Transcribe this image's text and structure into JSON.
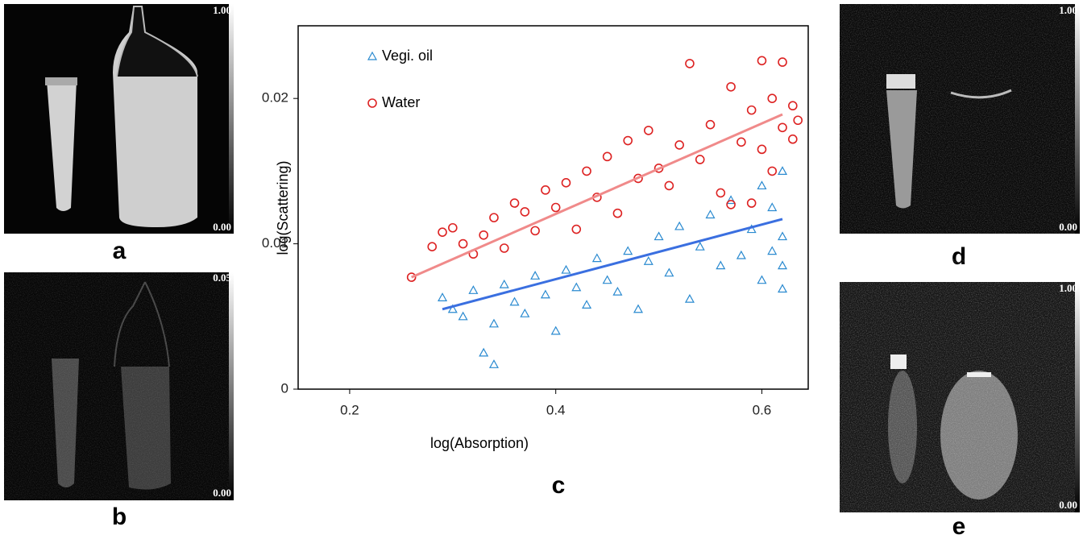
{
  "panels": [
    {
      "label": "a",
      "colorbar": [
        "1.00",
        "0.00"
      ]
    },
    {
      "label": "b",
      "colorbar": [
        "0.05",
        "0.00"
      ]
    },
    {
      "label": "d",
      "colorbar": [
        "1.00",
        "0.00"
      ]
    },
    {
      "label": "e",
      "colorbar": [
        "1.00",
        "0.00"
      ]
    }
  ],
  "chart_data": {
    "type": "scatter",
    "label": "c",
    "x_label": "log(Absorption)",
    "y_label": "log(Scattering)",
    "xlim": [
      0.15,
      0.645
    ],
    "ylim": [
      0,
      0.025
    ],
    "xticks": [
      0.2,
      0.4,
      0.6
    ],
    "yticks": [
      0,
      0.01,
      0.02
    ],
    "series": [
      {
        "name": "Vegi. oil",
        "color": "#2a8ad0",
        "marker": "triangle",
        "x": [
          0.29,
          0.3,
          0.31,
          0.32,
          0.33,
          0.34,
          0.34,
          0.35,
          0.36,
          0.37,
          0.38,
          0.39,
          0.4,
          0.41,
          0.42,
          0.43,
          0.44,
          0.45,
          0.46,
          0.47,
          0.48,
          0.49,
          0.5,
          0.51,
          0.52,
          0.53,
          0.54,
          0.55,
          0.56,
          0.57,
          0.58,
          0.59,
          0.6,
          0.6,
          0.61,
          0.61,
          0.62,
          0.62,
          0.62,
          0.62
        ],
        "values": [
          0.0063,
          0.0055,
          0.005,
          0.0068,
          0.0025,
          0.0017,
          0.0045,
          0.0072,
          0.006,
          0.0052,
          0.0078,
          0.0065,
          0.004,
          0.0082,
          0.007,
          0.0058,
          0.009,
          0.0075,
          0.0067,
          0.0095,
          0.0055,
          0.0088,
          0.0105,
          0.008,
          0.0112,
          0.0062,
          0.0098,
          0.012,
          0.0085,
          0.013,
          0.0092,
          0.011,
          0.014,
          0.0075,
          0.0125,
          0.0095,
          0.015,
          0.0105,
          0.0085,
          0.0069
        ],
        "fit": {
          "x": [
            0.29,
            0.62
          ],
          "y": [
            0.0055,
            0.0117
          ],
          "color": "#3a6fe0"
        }
      },
      {
        "name": "Water",
        "color": "#dd2222",
        "marker": "circle",
        "x": [
          0.26,
          0.28,
          0.29,
          0.3,
          0.31,
          0.32,
          0.33,
          0.34,
          0.35,
          0.36,
          0.37,
          0.38,
          0.39,
          0.4,
          0.41,
          0.42,
          0.43,
          0.44,
          0.45,
          0.46,
          0.47,
          0.48,
          0.49,
          0.5,
          0.51,
          0.52,
          0.53,
          0.54,
          0.55,
          0.56,
          0.57,
          0.58,
          0.59,
          0.6,
          0.6,
          0.61,
          0.61,
          0.62,
          0.62,
          0.63,
          0.63,
          0.635,
          0.59,
          0.57
        ],
        "values": [
          0.0077,
          0.0098,
          0.0108,
          0.0111,
          0.01,
          0.0093,
          0.0106,
          0.0118,
          0.0097,
          0.0128,
          0.0122,
          0.0109,
          0.0137,
          0.0125,
          0.0142,
          0.011,
          0.015,
          0.0132,
          0.016,
          0.0121,
          0.0171,
          0.0145,
          0.0178,
          0.0152,
          0.014,
          0.0168,
          0.0224,
          0.0158,
          0.0182,
          0.0135,
          0.0208,
          0.017,
          0.0192,
          0.0226,
          0.0165,
          0.02,
          0.015,
          0.0225,
          0.018,
          0.0195,
          0.0172,
          0.0185,
          0.0128,
          0.0127
        ],
        "fit": {
          "x": [
            0.26,
            0.62
          ],
          "y": [
            0.0077,
            0.0189
          ],
          "color": "#f08a8a"
        }
      }
    ]
  }
}
